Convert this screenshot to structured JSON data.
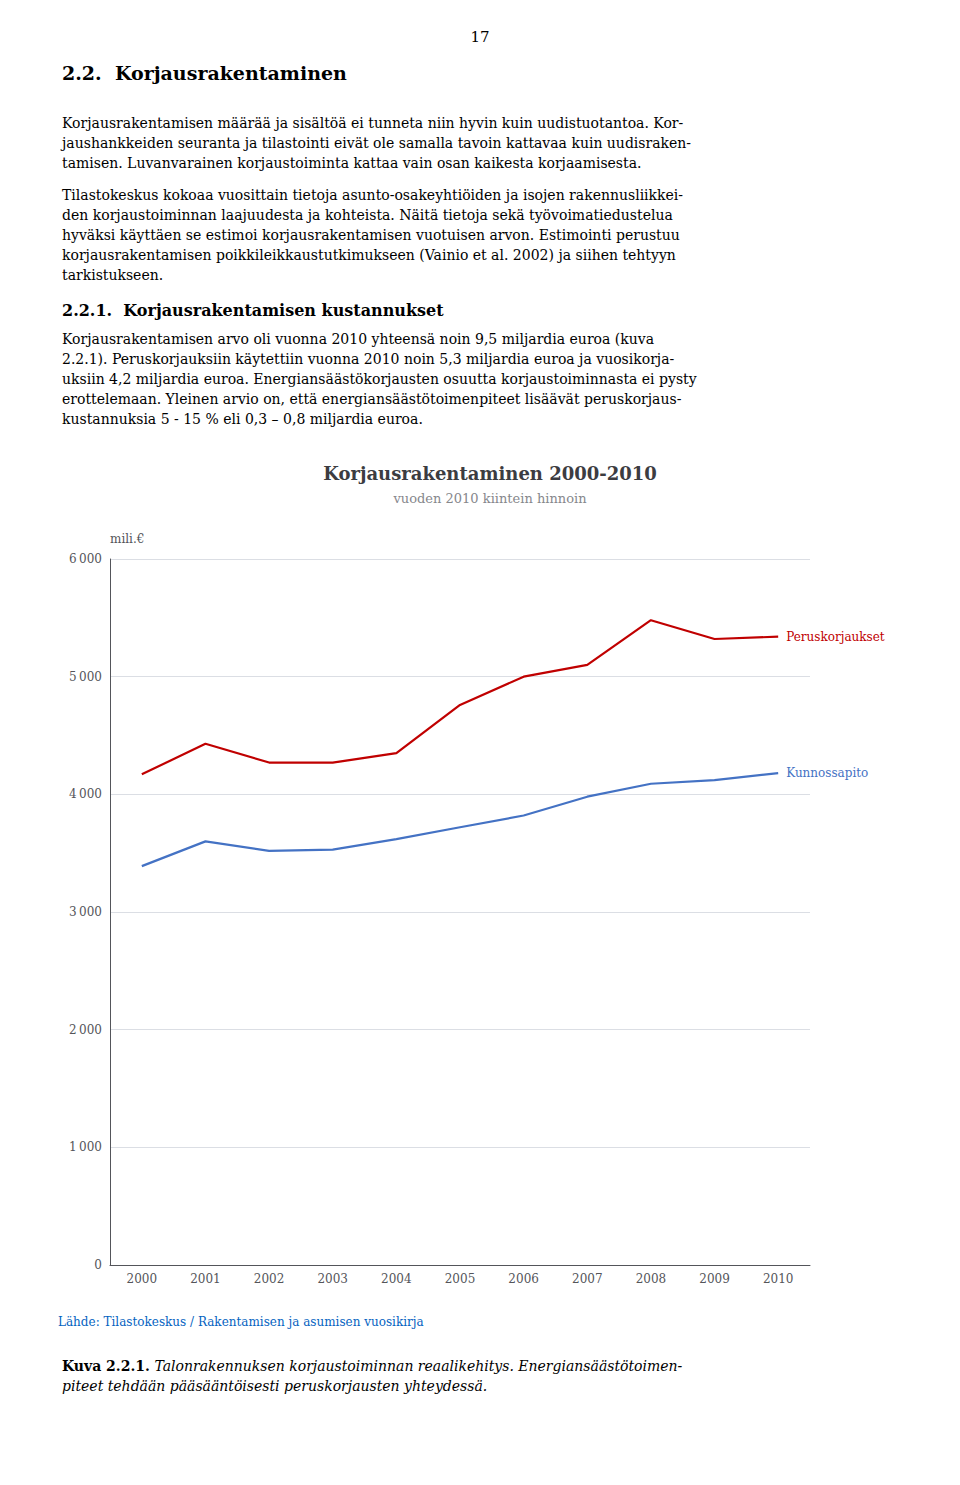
{
  "page_number": "17",
  "section_heading": "2.2.  Korjausrakentaminen",
  "para1_lines": [
    "Korjausrakentamisen määrää ja sisältöä ei tunneta niin hyvin kuin uudistuotantoa. Kor-",
    "jaushankkeiden seuranta ja tilastointi eivät ole samalla tavoin kattavaa kuin uudisraken-",
    "tamisen. Luvanvarainen korjaustoiminta kattaa vain osan kaikesta korjaamisesta."
  ],
  "para2_lines": [
    "Tilastokeskus kokoaa vuosittain tietoja asunto-osakeyhtiöiden ja isojen rakennusliikkei-",
    "den korjaustoiminnan laajuudesta ja kohteista. Näitä tietoja sekä työvoimatiedustelua",
    "hyväksi käyttäen se estimoi korjausrakentamisen vuotuisen arvon. Estimointi perustuu",
    "korjausrakentamisen poikkileikkaustutkimukseen (Vainio et al. 2002) ja siihen tehtyyn",
    "tarkistukseen."
  ],
  "subsection": "2.2.1.  Korjausrakentamisen kustannukset",
  "para3_lines": [
    "Korjausrakentamisen arvo oli vuonna 2010 yhteensä noin 9,5 miljardia euroa (kuva",
    "2.2.1). Peruskorjauksiin käytettiin vuonna 2010 noin 5,3 miljardia euroa ja vuosikorja-",
    "uksiin 4,2 miljardia euroa. Energiansäästökorjausten osuutta korjaustoiminnasta ei pysty",
    "erottelemaan. Yleinen arvio on, että energiansäästötoimenpiteet lisäävät peruskorjaus-",
    "kustannuksia 5 - 15 % eli 0,3 – 0,8 miljardia euroa."
  ],
  "caption_bold": "Kuva 2.2.1.",
  "caption_lines": [
    " Talonrakennuksen korjaustoiminnan reaalikehitys. Energiansäästötoimen-",
    "piteet tehdään pääsääntöisesti peruskorjausten yhteydessä."
  ],
  "chart_data": {
    "type": "line",
    "title": "Korjausrakentaminen 2000-2010",
    "subtitle": "vuoden 2010 kiintein hinnoin",
    "y_label": "mili.€",
    "source": "Lähde: Tilastokeskus / Rakentamisen ja asumisen vuosikirja",
    "categories": [
      "2000",
      "2001",
      "2002",
      "2003",
      "2004",
      "2005",
      "2006",
      "2007",
      "2008",
      "2009",
      "2010"
    ],
    "series": [
      {
        "name": "Peruskorjaukset",
        "color": "#c00000",
        "values": [
          4170,
          4430,
          4270,
          4270,
          4350,
          4760,
          5000,
          5100,
          5480,
          5320,
          5340
        ]
      },
      {
        "name": "Kunnossapito",
        "color": "#4472c4",
        "values": [
          3390,
          3600,
          3520,
          3530,
          3620,
          3720,
          3820,
          3980,
          4090,
          4120,
          4180
        ]
      }
    ],
    "ylim": [
      0,
      6000
    ],
    "yticks": [
      0,
      {
        "value": 1000,
        "label": "1 000"
      },
      {
        "value": 2000,
        "label": "2 000"
      },
      {
        "value": 3000,
        "label": "3 000"
      },
      {
        "value": 4000,
        "label": "4 000"
      },
      {
        "value": 5000,
        "label": "5 000"
      },
      {
        "value": 6000,
        "label": "6 000"
      }
    ],
    "grid": true
  }
}
